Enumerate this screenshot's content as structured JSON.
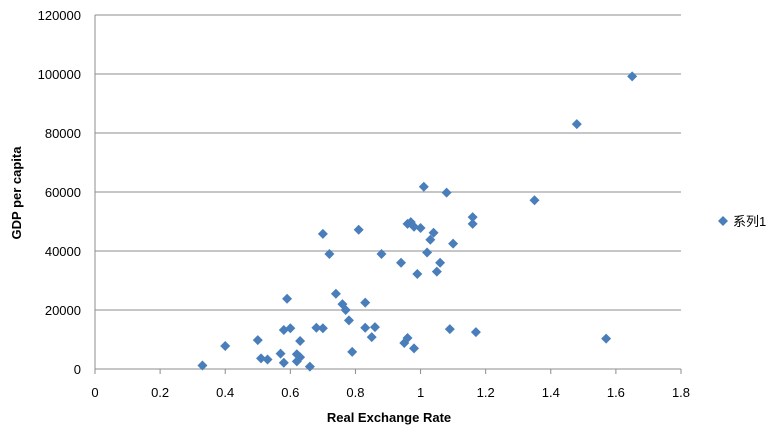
{
  "chart_data": {
    "type": "scatter",
    "xlabel": "Real Exchange  Rate",
    "ylabel": "GDP per capita",
    "xlim": [
      0,
      1.8
    ],
    "ylim": [
      0,
      120000
    ],
    "x_ticks": [
      "0",
      "0.2",
      "0.4",
      "0.6",
      "0.8",
      "1",
      "1.2",
      "1.4",
      "1.6",
      "1.8"
    ],
    "y_ticks": [
      "0",
      "20000",
      "40000",
      "60000",
      "80000",
      "100000",
      "120000"
    ],
    "grid": "horizontal",
    "legend_position": "right",
    "marker_color": "#4a7ebb",
    "series": [
      {
        "name": "系列1",
        "points": [
          [
            0.33,
            1200
          ],
          [
            0.4,
            7800
          ],
          [
            0.5,
            9800
          ],
          [
            0.51,
            3600
          ],
          [
            0.53,
            3200
          ],
          [
            0.57,
            5200
          ],
          [
            0.58,
            2100
          ],
          [
            0.58,
            13200
          ],
          [
            0.59,
            23800
          ],
          [
            0.6,
            13800
          ],
          [
            0.62,
            2600
          ],
          [
            0.62,
            5000
          ],
          [
            0.63,
            4000
          ],
          [
            0.63,
            9500
          ],
          [
            0.66,
            800
          ],
          [
            0.68,
            14000
          ],
          [
            0.7,
            13800
          ],
          [
            0.7,
            45800
          ],
          [
            0.72,
            39000
          ],
          [
            0.74,
            25500
          ],
          [
            0.76,
            22000
          ],
          [
            0.77,
            20000
          ],
          [
            0.78,
            16500
          ],
          [
            0.79,
            5800
          ],
          [
            0.81,
            47200
          ],
          [
            0.83,
            22500
          ],
          [
            0.83,
            14000
          ],
          [
            0.85,
            10800
          ],
          [
            0.86,
            14200
          ],
          [
            0.88,
            39000
          ],
          [
            0.94,
            36000
          ],
          [
            0.95,
            8800
          ],
          [
            0.96,
            10500
          ],
          [
            0.96,
            49200
          ],
          [
            0.97,
            49800
          ],
          [
            0.98,
            48200
          ],
          [
            0.98,
            7000
          ],
          [
            0.99,
            32200
          ],
          [
            1.0,
            47800
          ],
          [
            1.01,
            61800
          ],
          [
            1.02,
            39500
          ],
          [
            1.03,
            43800
          ],
          [
            1.04,
            46200
          ],
          [
            1.05,
            33000
          ],
          [
            1.06,
            36000
          ],
          [
            1.08,
            59800
          ],
          [
            1.09,
            13500
          ],
          [
            1.1,
            42500
          ],
          [
            1.16,
            51500
          ],
          [
            1.16,
            49200
          ],
          [
            1.17,
            12500
          ],
          [
            1.35,
            57200
          ],
          [
            1.48,
            83000
          ],
          [
            1.57,
            10300
          ],
          [
            1.65,
            99200
          ]
        ]
      }
    ]
  }
}
